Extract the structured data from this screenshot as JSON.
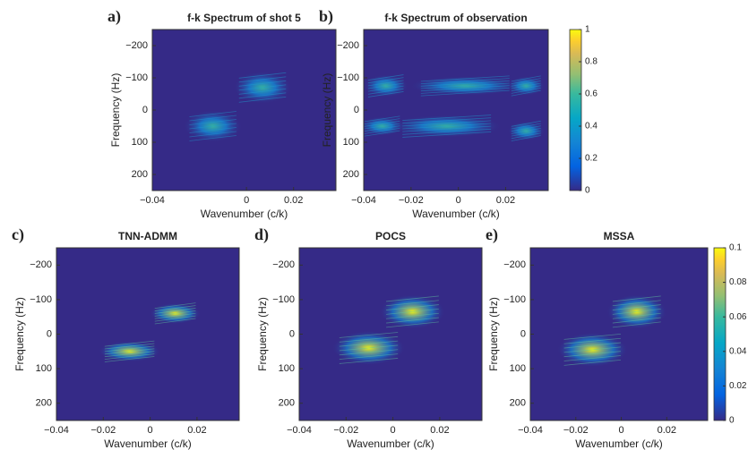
{
  "chart_data": [
    {
      "type": "heatmap",
      "label": "a)",
      "title": "f-k Spectrum of shot 5",
      "xlabel": "Wavenumber (c/k)",
      "ylabel": "Frequency (Hz)",
      "xlim": [
        -0.04,
        0.038
      ],
      "xticks": [
        {
          "value": -0.04,
          "label": "−0.04"
        },
        0,
        0.02
      ],
      "ylim": [
        -250,
        250
      ],
      "y_reversed": true,
      "yticks": [
        {
          "value": -200,
          "label": "−200"
        },
        {
          "value": -100,
          "label": "−100"
        },
        0,
        100,
        200
      ]
    },
    {
      "type": "heatmap",
      "label": "b)",
      "title": "f-k Spectrum of observation",
      "xlabel": "Wavenumber (c/k)",
      "ylabel": "Frequency (Hz)",
      "xlim": [
        -0.04,
        0.038
      ],
      "xticks": [
        {
          "value": -0.04,
          "label": "−0.04"
        },
        {
          "value": -0.02,
          "label": "−0.02"
        },
        0,
        0.02
      ],
      "ylim": [
        -250,
        250
      ],
      "y_reversed": true,
      "yticks": [
        {
          "value": -200,
          "label": "−200"
        },
        {
          "value": -100,
          "label": "−100"
        },
        0,
        100,
        200
      ],
      "colorbar": {
        "clim": [
          0,
          1
        ],
        "ticks": [
          0,
          0.2,
          0.4,
          0.6,
          0.8,
          1
        ]
      }
    },
    {
      "type": "heatmap",
      "label": "c)",
      "title": "TNN-ADMM",
      "xlabel": "Wavenumber (c/k)",
      "ylabel": "Frequency (Hz)",
      "xlim": [
        -0.04,
        0.038
      ],
      "xticks": [
        {
          "value": -0.04,
          "label": "−0.04"
        },
        {
          "value": -0.02,
          "label": "−0.02"
        },
        0,
        0.02
      ],
      "ylim": [
        -250,
        250
      ],
      "y_reversed": true,
      "yticks": [
        {
          "value": -200,
          "label": "−200"
        },
        {
          "value": -100,
          "label": "−100"
        },
        0,
        100,
        200
      ]
    },
    {
      "type": "heatmap",
      "label": "d)",
      "title": "POCS",
      "xlabel": "Wavenumber (c/k)",
      "ylabel": "Frequency (Hz)",
      "xlim": [
        -0.04,
        0.038
      ],
      "xticks": [
        {
          "value": -0.04,
          "label": "−0.04"
        },
        {
          "value": -0.02,
          "label": "−0.02"
        },
        0,
        0.02
      ],
      "ylim": [
        -250,
        250
      ],
      "y_reversed": true,
      "yticks": [
        {
          "value": -200,
          "label": "−200"
        },
        {
          "value": -100,
          "label": "−100"
        },
        0,
        100,
        200
      ]
    },
    {
      "type": "heatmap",
      "label": "e)",
      "title": "MSSA",
      "xlabel": "Wavenumber (c/k)",
      "ylabel": "Frequency (Hz)",
      "xlim": [
        -0.04,
        0.038
      ],
      "xticks": [
        {
          "value": -0.04,
          "label": "−0.04"
        },
        {
          "value": -0.02,
          "label": "−0.02"
        },
        0,
        0.02
      ],
      "ylim": [
        -250,
        250
      ],
      "y_reversed": true,
      "yticks": [
        {
          "value": -200,
          "label": "−200"
        },
        {
          "value": -100,
          "label": "−100"
        },
        0,
        100,
        200
      ],
      "colorbar": {
        "clim": [
          0,
          0.1
        ],
        "ticks": [
          0,
          0.02,
          0.04,
          0.06,
          0.08,
          0.1
        ]
      }
    }
  ]
}
